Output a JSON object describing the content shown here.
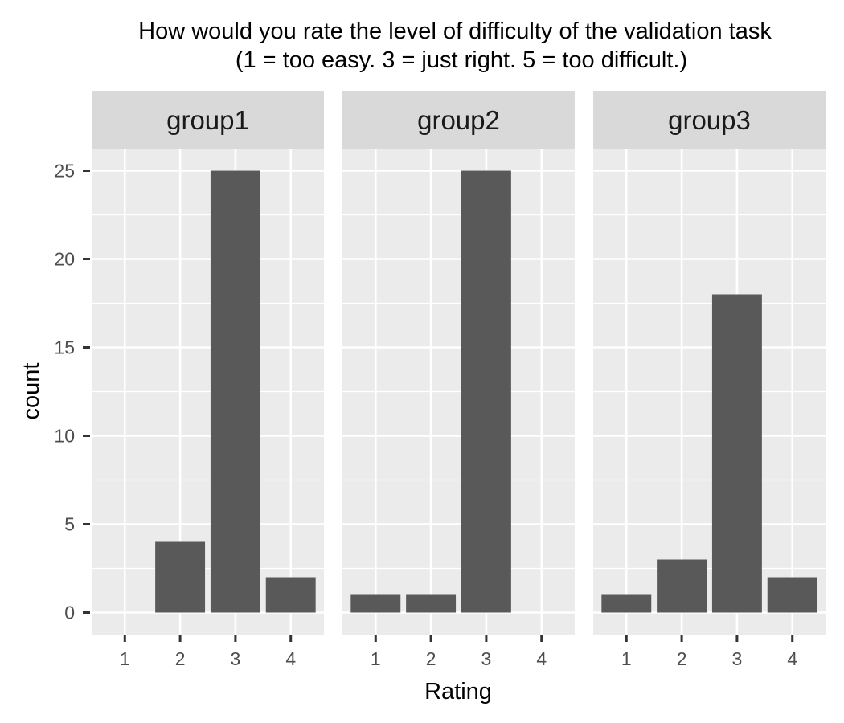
{
  "chart_data": {
    "type": "bar",
    "title_line1": "How would you rate the level of difficulty of the validation task",
    "title_line2": "(1 = too easy. 3 = just right. 5 = too difficult.)",
    "xlabel": "Rating",
    "ylabel": "count",
    "categories": [
      "1",
      "2",
      "3",
      "4"
    ],
    "y_ticks": [
      "0",
      "5",
      "10",
      "15",
      "20",
      "25"
    ],
    "ylim": [
      -1.25,
      26.25
    ],
    "grid": true,
    "bar_color": "#595959",
    "panel_background": "#ebebeb",
    "strip_background": "#d9d9d9",
    "facets": [
      {
        "name": "group1",
        "values": [
          0,
          4,
          25,
          2
        ]
      },
      {
        "name": "group2",
        "values": [
          1,
          1,
          25,
          0
        ]
      },
      {
        "name": "group3",
        "values": [
          1,
          3,
          18,
          2
        ]
      }
    ]
  }
}
